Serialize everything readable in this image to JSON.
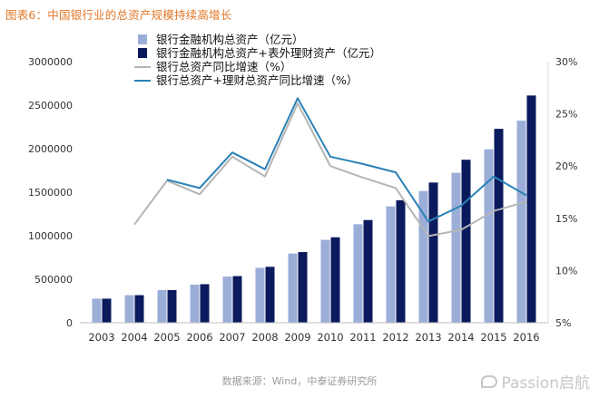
{
  "title": "图表6：中国银行业的总资产规模持续高增长",
  "source": "数据来源：Wind，中泰证券研究所",
  "watermark": "Passion启航",
  "colors": {
    "assets": "#9baed8",
    "assets_wm": "#0b1a5c",
    "assets_growth": "#b5b5b5",
    "assets_wm_growth": "#2a82b6",
    "title": "#e0782a"
  },
  "chart_data": {
    "type": "bar",
    "categories": [
      "2003",
      "2004",
      "2005",
      "2006",
      "2007",
      "2008",
      "2009",
      "2010",
      "2011",
      "2012",
      "2013",
      "2014",
      "2015",
      "2016"
    ],
    "series": [
      {
        "name": "银行金融机构总资产（亿元）",
        "type": "bar",
        "axis": "left",
        "values": [
          277000,
          317000,
          375000,
          439000,
          531000,
          631000,
          795000,
          953000,
          1132000,
          1337000,
          1514000,
          1723000,
          1993000,
          2322000
        ]
      },
      {
        "name": "银行金融机构总资产+表外理财资产（亿元）",
        "type": "bar",
        "axis": "left",
        "values": [
          277000,
          317000,
          375000,
          443000,
          536000,
          643000,
          812000,
          982000,
          1180000,
          1408000,
          1611000,
          1873000,
          2228000,
          2611000
        ]
      },
      {
        "name": "银行总资产同比增速（%）",
        "type": "line",
        "axis": "right",
        "values": [
          null,
          14.4,
          18.6,
          17.3,
          20.9,
          19.0,
          26.0,
          20.0,
          18.9,
          17.9,
          13.3,
          13.9,
          15.7,
          16.6
        ]
      },
      {
        "name": "银行总资产+理财总资产同比增速（%）",
        "type": "line",
        "axis": "right",
        "values": [
          null,
          null,
          18.7,
          17.9,
          21.3,
          19.7,
          26.5,
          20.9,
          20.2,
          19.4,
          14.7,
          16.2,
          19.0,
          17.2
        ]
      }
    ],
    "y_left": {
      "min": 0,
      "max": 3000000,
      "ticks": [
        "0",
        "500000",
        "1000000",
        "1500000",
        "2000000",
        "2500000",
        "3000000"
      ]
    },
    "y_right": {
      "min": 5,
      "max": 30,
      "ticks": [
        "5%",
        "10%",
        "15%",
        "20%",
        "25%",
        "30%"
      ]
    },
    "grid": false,
    "legend_position": "top-left"
  }
}
